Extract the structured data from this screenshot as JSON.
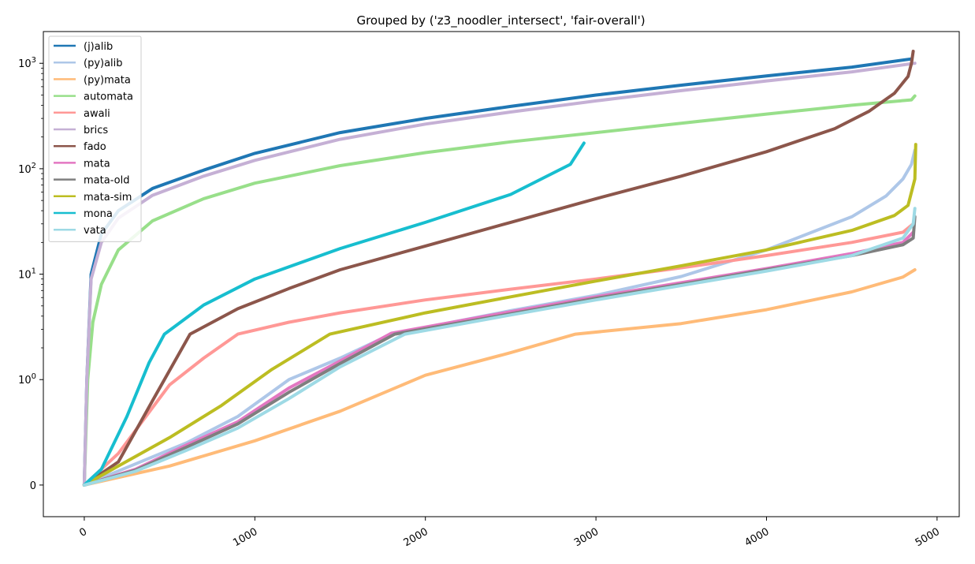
{
  "chart_data": {
    "type": "line",
    "title": "Grouped by ('z3_noodler_intersect', 'fair-overall')",
    "xlabel": "",
    "ylabel": "",
    "xlim": [
      -240,
      5130
    ],
    "y_scale": "symlog",
    "ylim": [
      -0.3,
      2000
    ],
    "x_ticks": [
      {
        "value": 0,
        "label": "0"
      },
      {
        "value": 1000,
        "label": "1000"
      },
      {
        "value": 2000,
        "label": "2000"
      },
      {
        "value": 3000,
        "label": "3000"
      },
      {
        "value": 4000,
        "label": "4000"
      },
      {
        "value": 5000,
        "label": "5000"
      }
    ],
    "y_ticks": [
      {
        "value": 0,
        "label": "0"
      },
      {
        "value": 1,
        "label": "10^0"
      },
      {
        "value": 10,
        "label": "10^1"
      },
      {
        "value": 100,
        "label": "10^2"
      },
      {
        "value": 1000,
        "label": "10^3"
      }
    ],
    "grid": false,
    "legend_position": "top-left",
    "series": [
      {
        "name": "(j)alib",
        "color": "#1f77b4",
        "points": [
          [
            0,
            0
          ],
          [
            15,
            1
          ],
          [
            40,
            10
          ],
          [
            100,
            24
          ],
          [
            200,
            40
          ],
          [
            400,
            65
          ],
          [
            700,
            97
          ],
          [
            1000,
            140
          ],
          [
            1500,
            220
          ],
          [
            2000,
            300
          ],
          [
            2500,
            390
          ],
          [
            3000,
            500
          ],
          [
            3500,
            620
          ],
          [
            4000,
            760
          ],
          [
            4500,
            920
          ],
          [
            4850,
            1100
          ]
        ]
      },
      {
        "name": "(py)alib",
        "color": "#aec7e8",
        "points": [
          [
            0,
            0
          ],
          [
            300,
            0.2
          ],
          [
            600,
            0.4
          ],
          [
            900,
            0.65
          ],
          [
            1200,
            1.0
          ],
          [
            1500,
            1.6
          ],
          [
            1800,
            2.7
          ],
          [
            2500,
            4.5
          ],
          [
            3000,
            6.3
          ],
          [
            3500,
            9.5
          ],
          [
            4000,
            17
          ],
          [
            4500,
            35
          ],
          [
            4700,
            55
          ],
          [
            4800,
            80
          ],
          [
            4850,
            110
          ],
          [
            4870,
            150
          ]
        ]
      },
      {
        "name": "(py)mata",
        "color": "#ffbb78",
        "points": [
          [
            0,
            0
          ],
          [
            500,
            0.18
          ],
          [
            1000,
            0.42
          ],
          [
            1500,
            0.7
          ],
          [
            2000,
            1.1
          ],
          [
            2500,
            1.8
          ],
          [
            2880,
            2.7
          ],
          [
            3500,
            3.4
          ],
          [
            4000,
            4.6
          ],
          [
            4500,
            6.8
          ],
          [
            4800,
            9.4
          ],
          [
            4870,
            11
          ]
        ]
      },
      {
        "name": "automata",
        "color": "#98df8a",
        "points": [
          [
            0,
            0
          ],
          [
            20,
            1
          ],
          [
            50,
            3.5
          ],
          [
            100,
            8
          ],
          [
            200,
            17
          ],
          [
            400,
            32
          ],
          [
            700,
            52
          ],
          [
            1000,
            73
          ],
          [
            1500,
            107
          ],
          [
            2000,
            142
          ],
          [
            2500,
            180
          ],
          [
            3000,
            220
          ],
          [
            3500,
            270
          ],
          [
            4000,
            330
          ],
          [
            4500,
            400
          ],
          [
            4850,
            450
          ],
          [
            4870,
            490
          ]
        ]
      },
      {
        "name": "awali",
        "color": "#ff9896",
        "points": [
          [
            0,
            0
          ],
          [
            200,
            0.3
          ],
          [
            500,
            0.95
          ],
          [
            700,
            1.6
          ],
          [
            900,
            2.7
          ],
          [
            1200,
            3.5
          ],
          [
            1500,
            4.3
          ],
          [
            2000,
            5.7
          ],
          [
            2500,
            7.2
          ],
          [
            3000,
            9
          ],
          [
            3500,
            11.5
          ],
          [
            4000,
            15
          ],
          [
            4500,
            20
          ],
          [
            4800,
            25
          ],
          [
            4860,
            30
          ]
        ]
      },
      {
        "name": "brics",
        "color": "#c5b0d5",
        "points": [
          [
            0,
            0
          ],
          [
            15,
            1
          ],
          [
            40,
            9
          ],
          [
            100,
            20
          ],
          [
            200,
            34
          ],
          [
            400,
            56
          ],
          [
            700,
            85
          ],
          [
            1000,
            120
          ],
          [
            1500,
            190
          ],
          [
            2000,
            265
          ],
          [
            2500,
            345
          ],
          [
            3000,
            440
          ],
          [
            3500,
            550
          ],
          [
            4000,
            680
          ],
          [
            4500,
            830
          ],
          [
            4870,
            1000
          ]
        ]
      },
      {
        "name": "fado",
        "color": "#8c564b",
        "points": [
          [
            0,
            0
          ],
          [
            200,
            0.22
          ],
          [
            400,
            0.8
          ],
          [
            620,
            2.7
          ],
          [
            900,
            4.7
          ],
          [
            1200,
            7.3
          ],
          [
            1500,
            11
          ],
          [
            2000,
            18.5
          ],
          [
            2500,
            31
          ],
          [
            3000,
            52
          ],
          [
            3500,
            85
          ],
          [
            4000,
            145
          ],
          [
            4400,
            240
          ],
          [
            4600,
            350
          ],
          [
            4750,
            520
          ],
          [
            4830,
            750
          ],
          [
            4850,
            1000
          ],
          [
            4860,
            1300
          ]
        ]
      },
      {
        "name": "mata",
        "color": "#e377c2",
        "points": [
          [
            0,
            0
          ],
          [
            300,
            0.15
          ],
          [
            600,
            0.38
          ],
          [
            900,
            0.6
          ],
          [
            1200,
            0.92
          ],
          [
            1500,
            1.5
          ],
          [
            1800,
            2.75
          ],
          [
            2500,
            4.4
          ],
          [
            3000,
            6.1
          ],
          [
            3500,
            8.3
          ],
          [
            4000,
            11.3
          ],
          [
            4500,
            15.7
          ],
          [
            4800,
            20
          ],
          [
            4860,
            25
          ]
        ]
      },
      {
        "name": "mata-old",
        "color": "#7f7f7f",
        "points": [
          [
            0,
            0
          ],
          [
            300,
            0.14
          ],
          [
            600,
            0.36
          ],
          [
            900,
            0.58
          ],
          [
            1200,
            0.88
          ],
          [
            1500,
            1.42
          ],
          [
            1820,
            2.7
          ],
          [
            2500,
            4.2
          ],
          [
            3000,
            5.9
          ],
          [
            3500,
            8
          ],
          [
            4000,
            11
          ],
          [
            4500,
            15
          ],
          [
            4800,
            19
          ],
          [
            4860,
            22
          ],
          [
            4870,
            35
          ]
        ]
      },
      {
        "name": "mata-sim",
        "color": "#bcbd22",
        "points": [
          [
            0,
            0
          ],
          [
            200,
            0.18
          ],
          [
            500,
            0.45
          ],
          [
            800,
            0.75
          ],
          [
            1100,
            1.25
          ],
          [
            1440,
            2.7
          ],
          [
            2000,
            4.3
          ],
          [
            2500,
            6.1
          ],
          [
            3000,
            8.6
          ],
          [
            3500,
            12
          ],
          [
            4000,
            17
          ],
          [
            4500,
            26
          ],
          [
            4750,
            36
          ],
          [
            4830,
            45
          ],
          [
            4870,
            80
          ],
          [
            4875,
            170
          ]
        ]
      },
      {
        "name": "mona",
        "color": "#17becf",
        "points": [
          [
            0,
            0
          ],
          [
            100,
            0.15
          ],
          [
            250,
            0.65
          ],
          [
            380,
            1.45
          ],
          [
            470,
            2.7
          ],
          [
            700,
            5.1
          ],
          [
            1000,
            9
          ],
          [
            1500,
            17.5
          ],
          [
            2000,
            31
          ],
          [
            2500,
            57
          ],
          [
            2850,
            110
          ],
          [
            2930,
            175
          ]
        ]
      },
      {
        "name": "vata",
        "color": "#9edae5",
        "points": [
          [
            0,
            0
          ],
          [
            300,
            0.13
          ],
          [
            600,
            0.33
          ],
          [
            900,
            0.54
          ],
          [
            1200,
            0.82
          ],
          [
            1500,
            1.32
          ],
          [
            1880,
            2.7
          ],
          [
            2500,
            4.1
          ],
          [
            3000,
            5.7
          ],
          [
            3500,
            7.8
          ],
          [
            4000,
            10.7
          ],
          [
            4500,
            15
          ],
          [
            4800,
            22
          ],
          [
            4860,
            30
          ],
          [
            4870,
            42
          ]
        ]
      }
    ]
  }
}
